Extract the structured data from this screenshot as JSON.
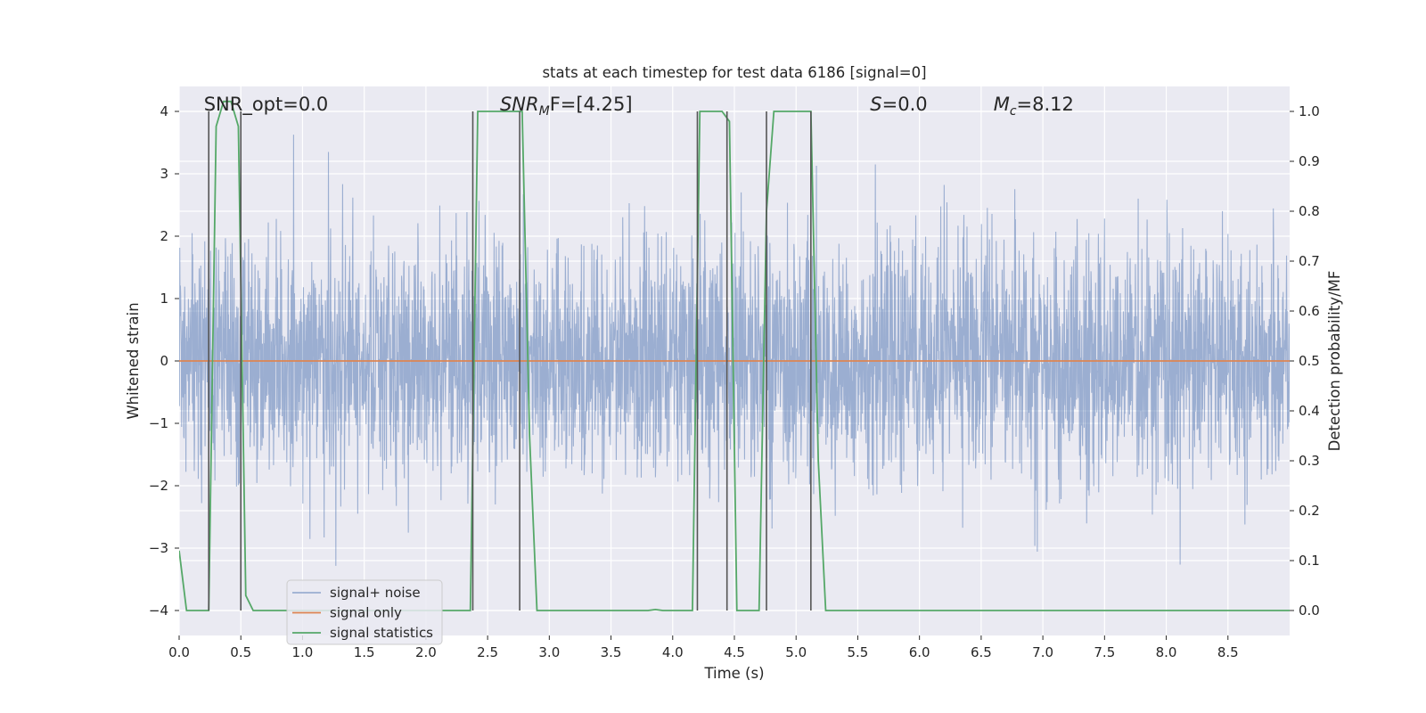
{
  "chart_data": {
    "type": "line",
    "title": "stats at each timestep for test data 6186 [signal=0]",
    "xlabel": "Time (s)",
    "ylabel": "Whitened strain",
    "ylabel_right": "Detection probability/MF",
    "xlim": [
      0.0,
      9.0
    ],
    "ylim": [
      -4.4,
      4.4
    ],
    "ylim_right": [
      -0.05,
      1.05
    ],
    "x_ticks": [
      "0.0",
      "0.5",
      "1.0",
      "1.5",
      "2.0",
      "2.5",
      "3.0",
      "3.5",
      "4.0",
      "4.5",
      "5.0",
      "5.5",
      "6.0",
      "6.5",
      "7.0",
      "7.5",
      "8.0",
      "8.5"
    ],
    "y_ticks": [
      "4",
      "3",
      "2",
      "1",
      "0",
      "−1",
      "−2",
      "−3",
      "−4"
    ],
    "y_ticks_right": [
      "1.0",
      "0.9",
      "0.8",
      "0.7",
      "0.6",
      "0.5",
      "0.4",
      "0.3",
      "0.2",
      "0.1",
      "0.0"
    ],
    "grid": true,
    "legend_position": "lower-left",
    "annotations": [
      {
        "id": "snr-opt",
        "pre": "SNR_opt=0.0",
        "italic": "",
        "sub": "",
        "post": "",
        "x": 0.2
      },
      {
        "id": "snr-mf",
        "pre": "",
        "italic": "SNR",
        "sub": "M",
        "post": "F=[4.25]",
        "x": 2.6
      },
      {
        "id": "s",
        "pre": "",
        "italic": "S",
        "sub": "",
        "post": "=0.0",
        "x": 5.6
      },
      {
        "id": "mc",
        "pre": "",
        "italic": "M",
        "sub": "c",
        "post": "=8.12",
        "x": 6.6
      }
    ],
    "series": [
      {
        "name": "signal+ noise",
        "color": "#4c72b0",
        "style": "dense noise trace, alpha 0.5",
        "sample_rate_hz": 2048,
        "envelope_y": [
          -3.8,
          3.85
        ]
      },
      {
        "name": "signal only",
        "color": "#dd8452",
        "x": [
          0.0,
          9.0
        ],
        "y": [
          0.0,
          0.0
        ]
      },
      {
        "name": "signal statistics",
        "color": "#55a868",
        "axis": "right",
        "x": [
          0.0,
          0.06,
          0.12,
          0.18,
          0.24,
          0.3,
          0.36,
          0.42,
          0.48,
          0.54,
          0.6,
          0.66,
          0.72,
          2.3,
          2.36,
          2.42,
          2.48,
          2.54,
          2.6,
          2.66,
          2.72,
          2.78,
          2.84,
          2.9,
          2.96,
          3.8,
          3.86,
          3.92,
          4.1,
          4.16,
          4.22,
          4.28,
          4.34,
          4.4,
          4.46,
          4.52,
          4.58,
          4.64,
          4.7,
          4.76,
          4.82,
          4.88,
          5.06,
          5.12,
          5.18,
          5.24,
          5.3,
          9.0
        ],
        "y": [
          0.12,
          0.0,
          0.0,
          0.0,
          0.0,
          0.97,
          1.02,
          1.02,
          0.97,
          0.03,
          0.0,
          0.0,
          0.0,
          0.0,
          0.0,
          1.0,
          1.0,
          1.0,
          1.0,
          1.0,
          1.0,
          1.0,
          0.35,
          0.0,
          0.0,
          0.0,
          0.002,
          0.0,
          0.0,
          0.0,
          1.0,
          1.0,
          1.0,
          1.0,
          0.98,
          0.0,
          0.0,
          0.0,
          0.0,
          0.8,
          1.0,
          1.0,
          1.0,
          1.0,
          0.3,
          0.0,
          0.0,
          0.0
        ]
      }
    ],
    "vlines": [
      {
        "x": 0.24,
        "y_from": 0.0,
        "y_to": 1.0
      },
      {
        "x": 0.5,
        "y_from": 0.0,
        "y_to": 1.0
      },
      {
        "x": 2.38,
        "y_from": 0.0,
        "y_to": 1.0
      },
      {
        "x": 2.76,
        "y_from": 0.0,
        "y_to": 1.0
      },
      {
        "x": 4.2,
        "y_from": 0.0,
        "y_to": 1.0
      },
      {
        "x": 4.44,
        "y_from": 0.0,
        "y_to": 1.0
      },
      {
        "x": 4.76,
        "y_from": 0.0,
        "y_to": 1.0
      },
      {
        "x": 5.12,
        "y_from": 0.0,
        "y_to": 1.0
      }
    ]
  }
}
